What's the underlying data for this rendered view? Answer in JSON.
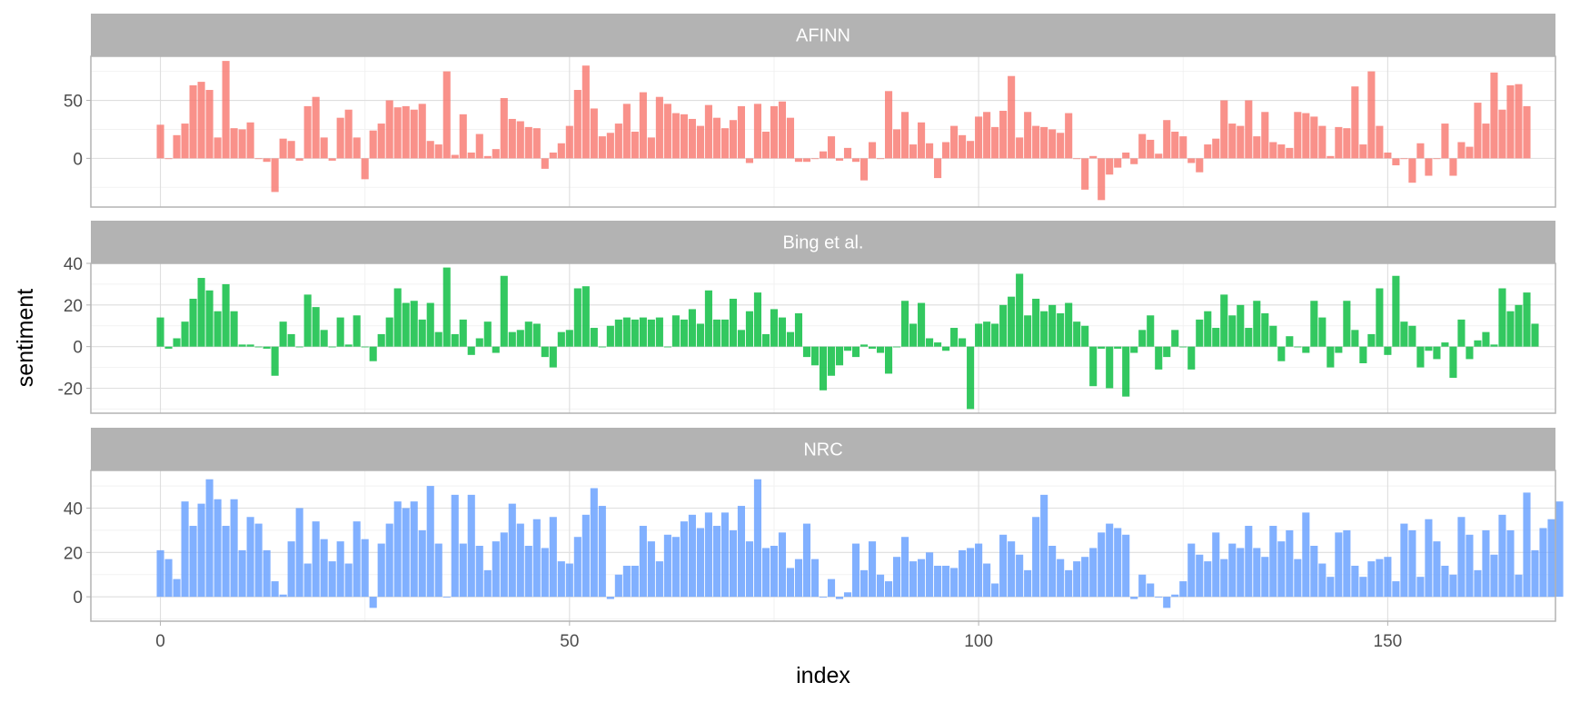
{
  "chart_data": {
    "type": "bar",
    "faceted": true,
    "xlabel": "index",
    "ylabel": "sentiment",
    "x_ticks": [
      0,
      50,
      100,
      150
    ],
    "xlim": [
      -8.5,
      170.5
    ],
    "grid": true,
    "facet_strip_color": "#b3b3b3",
    "panels": [
      {
        "label": "AFINN",
        "color": "#f8766d",
        "ylim": [
          -42,
          88
        ],
        "y_ticks": [
          0,
          50
        ],
        "values": [
          29,
          0,
          20,
          30,
          63,
          66,
          59,
          18,
          84,
          26,
          25,
          31,
          0,
          -3,
          -29,
          17,
          15,
          -2,
          45,
          53,
          18,
          -2,
          35,
          42,
          18,
          -18,
          24,
          30,
          50,
          44,
          45,
          42,
          47,
          15,
          12,
          75,
          3,
          38,
          5,
          21,
          2,
          8,
          52,
          34,
          32,
          27,
          26,
          -9,
          5,
          13,
          28,
          59,
          80,
          43,
          19,
          22,
          30,
          47,
          23,
          57,
          18,
          53,
          47,
          39,
          38,
          34,
          28,
          46,
          35,
          26,
          33,
          45,
          -4,
          47,
          23,
          45,
          49,
          35,
          -3,
          -3,
          0,
          6,
          19,
          -2,
          9,
          -3,
          -19,
          14,
          0,
          58,
          25,
          40,
          12,
          31,
          13,
          -17,
          14,
          28,
          20,
          15,
          36,
          40,
          27,
          41,
          71,
          18,
          40,
          28,
          27,
          25,
          22,
          39,
          0,
          -27,
          2,
          -36,
          -14,
          -8,
          5,
          -5,
          21,
          16,
          4,
          33,
          23,
          19,
          -4,
          -12,
          12,
          17,
          50,
          30,
          28,
          50,
          19,
          40,
          14,
          12,
          9,
          40,
          39,
          36,
          28,
          2,
          27,
          26,
          62,
          12,
          75,
          28,
          5,
          -6,
          0,
          -21,
          13,
          -15,
          0,
          30,
          -15,
          14,
          10,
          48,
          30,
          74,
          42,
          63,
          64,
          45
        ]
      },
      {
        "label": "Bing et al.",
        "color": "#00ba38",
        "ylim": [
          -32,
          40
        ],
        "y_ticks": [
          -20,
          0,
          20,
          40
        ],
        "values": [
          14,
          -1,
          4,
          12,
          23,
          33,
          27,
          17,
          30,
          17,
          1,
          1,
          0,
          -1,
          -14,
          12,
          6,
          0,
          25,
          19,
          8,
          0,
          14,
          1,
          15,
          0,
          -7,
          6,
          14,
          28,
          21,
          22,
          13,
          21,
          7,
          38,
          6,
          13,
          -4,
          4,
          12,
          -3,
          34,
          7,
          8,
          12,
          11,
          -5,
          -10,
          7,
          8,
          28,
          29,
          9,
          0,
          10,
          13,
          14,
          13,
          14,
          13,
          14,
          0,
          15,
          13,
          18,
          11,
          27,
          13,
          13,
          23,
          8,
          17,
          26,
          6,
          18,
          14,
          7,
          16,
          -5,
          -9,
          -21,
          -14,
          -9,
          -2,
          -5,
          1,
          -1,
          -3,
          -13,
          0,
          22,
          11,
          21,
          4,
          2,
          -2,
          9,
          4,
          -30,
          11,
          12,
          11,
          20,
          24,
          35,
          15,
          23,
          17,
          20,
          16,
          21,
          12,
          10,
          -19,
          -1,
          -20,
          -1,
          -24,
          -3,
          8,
          15,
          -11,
          -5,
          8,
          0,
          -11,
          13,
          17,
          9,
          25,
          15,
          20,
          9,
          22,
          16,
          10,
          -7,
          5,
          0,
          -3,
          22,
          14,
          -10,
          -3,
          22,
          8,
          -8,
          6,
          28,
          -4,
          34,
          12,
          10,
          -10,
          -2,
          -6,
          2,
          -15,
          13,
          -6,
          3,
          7,
          1,
          28,
          17,
          20,
          26,
          11
        ]
      },
      {
        "label": "NRC",
        "color": "#619cff",
        "ylim": [
          -11,
          57
        ],
        "y_ticks": [
          0,
          20,
          40
        ],
        "values": [
          21,
          17,
          8,
          43,
          32,
          42,
          53,
          44,
          32,
          44,
          21,
          36,
          33,
          21,
          7,
          1,
          25,
          40,
          15,
          34,
          26,
          16,
          25,
          15,
          34,
          26,
          -5,
          24,
          33,
          43,
          40,
          43,
          30,
          50,
          24,
          0,
          46,
          24,
          46,
          23,
          12,
          25,
          29,
          42,
          33,
          23,
          35,
          22,
          36,
          16,
          15,
          27,
          37,
          49,
          41,
          -1,
          10,
          14,
          14,
          32,
          25,
          16,
          28,
          27,
          34,
          37,
          31,
          38,
          32,
          38,
          30,
          41,
          25,
          53,
          22,
          23,
          29,
          13,
          17,
          33,
          17,
          0,
          8,
          -1,
          2,
          24,
          12,
          25,
          10,
          7,
          18,
          27,
          16,
          17,
          20,
          14,
          14,
          13,
          21,
          22,
          24,
          15,
          6,
          28,
          25,
          19,
          12,
          36,
          46,
          23,
          17,
          12,
          16,
          18,
          22,
          29,
          33,
          31,
          28,
          -1,
          10,
          6,
          0,
          -5,
          1,
          7,
          24,
          19,
          16,
          29,
          17,
          24,
          22,
          32,
          22,
          18,
          32,
          25,
          30,
          17,
          38,
          23,
          15,
          9,
          29,
          30,
          14,
          9,
          16,
          17,
          18,
          7,
          33,
          30,
          9,
          35,
          25,
          14,
          10,
          36,
          28,
          12,
          30,
          19,
          37,
          30,
          10,
          47,
          21,
          31,
          35,
          43
        ]
      }
    ]
  }
}
